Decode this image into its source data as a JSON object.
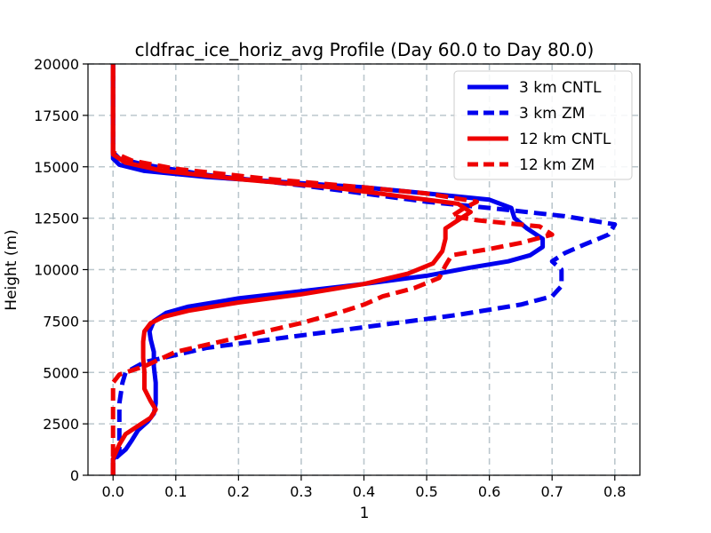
{
  "chart_data": {
    "type": "line",
    "title": "cldfrac_ice_horiz_avg Profile (Day 60.0 to Day 80.0)",
    "xlabel": "1",
    "ylabel": "Height (m)",
    "xlim": [
      -0.04,
      0.84
    ],
    "ylim": [
      0,
      20000
    ],
    "xticks": [
      "0.0",
      "0.1",
      "0.2",
      "0.3",
      "0.4",
      "0.5",
      "0.6",
      "0.7",
      "0.8"
    ],
    "xtick_values": [
      0,
      0.1,
      0.2,
      0.3,
      0.4,
      0.5,
      0.6,
      0.7,
      0.8
    ],
    "yticks": [
      "0",
      "2500",
      "5000",
      "7500",
      "10000",
      "12500",
      "15000",
      "17500",
      "20000"
    ],
    "ytick_values": [
      0,
      2500,
      5000,
      7500,
      10000,
      12500,
      15000,
      17500,
      20000
    ],
    "grid": true,
    "legend_position": "top-right",
    "series": [
      {
        "name": "3 km CNTL",
        "color": "#0000ee",
        "dashed": false,
        "points": [
          [
            0,
            0
          ],
          [
            0,
            800
          ],
          [
            0.01,
            1000
          ],
          [
            0.02,
            1250
          ],
          [
            0.03,
            1700
          ],
          [
            0.04,
            2200
          ],
          [
            0.055,
            2600
          ],
          [
            0.065,
            3000
          ],
          [
            0.068,
            3500
          ],
          [
            0.068,
            4500
          ],
          [
            0.065,
            5300
          ],
          [
            0.065,
            6000
          ],
          [
            0.06,
            6600
          ],
          [
            0.058,
            7000
          ],
          [
            0.065,
            7500
          ],
          [
            0.085,
            7900
          ],
          [
            0.12,
            8200
          ],
          [
            0.2,
            8600
          ],
          [
            0.3,
            8950
          ],
          [
            0.4,
            9300
          ],
          [
            0.5,
            9700
          ],
          [
            0.57,
            10100
          ],
          [
            0.63,
            10400
          ],
          [
            0.665,
            10700
          ],
          [
            0.685,
            11100
          ],
          [
            0.685,
            11500
          ],
          [
            0.66,
            12000
          ],
          [
            0.64,
            12500
          ],
          [
            0.635,
            13000
          ],
          [
            0.6,
            13400
          ],
          [
            0.5,
            13700
          ],
          [
            0.4,
            14000
          ],
          [
            0.3,
            14200
          ],
          [
            0.15,
            14500
          ],
          [
            0.05,
            14800
          ],
          [
            0.01,
            15100
          ],
          [
            0,
            15400
          ],
          [
            0,
            16000
          ],
          [
            0,
            20000
          ]
        ]
      },
      {
        "name": "3 km ZM",
        "color": "#0000ee",
        "dashed": true,
        "points": [
          [
            0,
            0
          ],
          [
            0,
            700
          ],
          [
            0.01,
            1000
          ],
          [
            0.01,
            2500
          ],
          [
            0.01,
            3500
          ],
          [
            0.015,
            4500
          ],
          [
            0.02,
            5000
          ],
          [
            0.05,
            5500
          ],
          [
            0.15,
            6200
          ],
          [
            0.25,
            6600
          ],
          [
            0.35,
            7000
          ],
          [
            0.45,
            7400
          ],
          [
            0.55,
            7800
          ],
          [
            0.65,
            8300
          ],
          [
            0.7,
            8700
          ],
          [
            0.715,
            9200
          ],
          [
            0.715,
            10000
          ],
          [
            0.7,
            10400
          ],
          [
            0.72,
            10800
          ],
          [
            0.75,
            11200
          ],
          [
            0.79,
            11700
          ],
          [
            0.8,
            12200
          ],
          [
            0.72,
            12600
          ],
          [
            0.6,
            13000
          ],
          [
            0.5,
            13300
          ],
          [
            0.4,
            13700
          ],
          [
            0.3,
            14100
          ],
          [
            0.15,
            14600
          ],
          [
            0.05,
            15100
          ],
          [
            0.01,
            15400
          ],
          [
            0,
            15700
          ],
          [
            0,
            20000
          ]
        ]
      },
      {
        "name": "12 km CNTL",
        "color": "#ee0000",
        "dashed": false,
        "points": [
          [
            0,
            0
          ],
          [
            0,
            800
          ],
          [
            0.01,
            1500
          ],
          [
            0.02,
            2000
          ],
          [
            0.04,
            2400
          ],
          [
            0.06,
            2800
          ],
          [
            0.068,
            3200
          ],
          [
            0.06,
            3600
          ],
          [
            0.05,
            4200
          ],
          [
            0.05,
            5000
          ],
          [
            0.048,
            5700
          ],
          [
            0.048,
            6500
          ],
          [
            0.05,
            7000
          ],
          [
            0.06,
            7400
          ],
          [
            0.08,
            7700
          ],
          [
            0.12,
            8000
          ],
          [
            0.2,
            8400
          ],
          [
            0.3,
            8800
          ],
          [
            0.4,
            9300
          ],
          [
            0.47,
            9800
          ],
          [
            0.51,
            10300
          ],
          [
            0.525,
            10900
          ],
          [
            0.53,
            11500
          ],
          [
            0.53,
            12000
          ],
          [
            0.55,
            12400
          ],
          [
            0.57,
            12800
          ],
          [
            0.55,
            13200
          ],
          [
            0.45,
            13600
          ],
          [
            0.35,
            14000
          ],
          [
            0.2,
            14400
          ],
          [
            0.08,
            14800
          ],
          [
            0.02,
            15200
          ],
          [
            0,
            15600
          ],
          [
            0,
            20000
          ]
        ]
      },
      {
        "name": "12 km ZM",
        "color": "#ee0000",
        "dashed": true,
        "points": [
          [
            0,
            0
          ],
          [
            0,
            1200
          ],
          [
            0,
            2500
          ],
          [
            0,
            3500
          ],
          [
            0,
            4500
          ],
          [
            0.01,
            4900
          ],
          [
            0.05,
            5300
          ],
          [
            0.1,
            6000
          ],
          [
            0.2,
            6700
          ],
          [
            0.3,
            7400
          ],
          [
            0.37,
            8000
          ],
          [
            0.4,
            8300
          ],
          [
            0.43,
            8700
          ],
          [
            0.48,
            9100
          ],
          [
            0.52,
            9600
          ],
          [
            0.53,
            10200
          ],
          [
            0.54,
            10700
          ],
          [
            0.6,
            11000
          ],
          [
            0.65,
            11300
          ],
          [
            0.7,
            11700
          ],
          [
            0.68,
            12100
          ],
          [
            0.58,
            12400
          ],
          [
            0.54,
            12600
          ],
          [
            0.56,
            13000
          ],
          [
            0.58,
            13300
          ],
          [
            0.5,
            13700
          ],
          [
            0.4,
            14000
          ],
          [
            0.25,
            14400
          ],
          [
            0.1,
            14900
          ],
          [
            0.03,
            15300
          ],
          [
            0,
            15700
          ],
          [
            0,
            20000
          ]
        ]
      }
    ]
  }
}
